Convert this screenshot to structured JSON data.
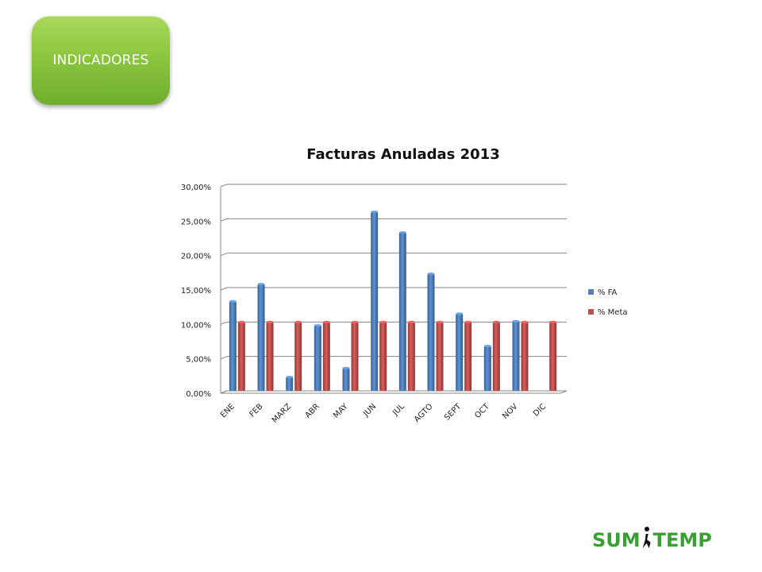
{
  "slide": {
    "badge_label": "INDICADORES",
    "logo_left": "SUM",
    "logo_right": "TEMP",
    "logo_icon": "person-icon"
  },
  "chart_data": {
    "type": "bar",
    "title": "Facturas Anuladas 2013",
    "categories": [
      "ENE",
      "FEB",
      "MARZ",
      "ABR",
      "MAY",
      "JUN",
      "JUL",
      "AGTO",
      "SEPT",
      "OCT",
      "NOV",
      "DIC"
    ],
    "series": [
      {
        "name": "% FA",
        "color": "#4f81bd",
        "values": [
          13.0,
          15.5,
          2.0,
          9.5,
          3.3,
          26.0,
          23.0,
          17.0,
          11.2,
          6.5,
          10.1,
          null
        ]
      },
      {
        "name": "% Meta",
        "color": "#c0504d",
        "values": [
          10,
          10,
          10,
          10,
          10,
          10,
          10,
          10,
          10,
          10,
          10,
          10
        ]
      }
    ],
    "ylim": [
      0,
      30
    ],
    "yticks": [
      "0,00%",
      "5,00%",
      "10,00%",
      "15,00%",
      "20,00%",
      "25,00%",
      "30,00%"
    ],
    "grid": true,
    "legend": "right"
  }
}
